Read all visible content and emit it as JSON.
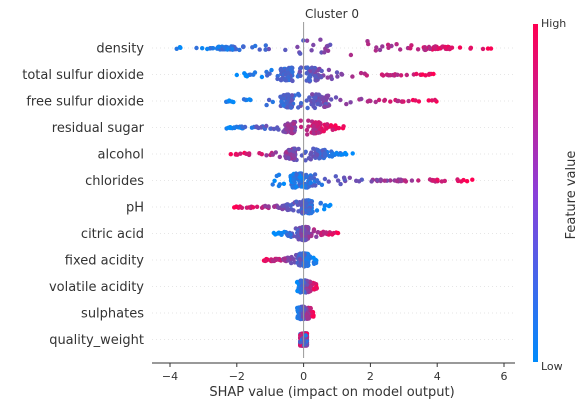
{
  "chart_data": {
    "type": "scatter",
    "subtype": "shap-beeswarm",
    "title": "Cluster 0",
    "xlabel": "SHAP value (impact on model output)",
    "xlim": [
      -4.6,
      6.3
    ],
    "xticks": [
      -4,
      -2,
      0,
      2,
      4,
      6
    ],
    "xtick_labels": [
      "−4",
      "−2",
      "0",
      "2",
      "4",
      "6"
    ],
    "colorbar": {
      "title": "Feature value",
      "high_label": "High",
      "low_label": "Low",
      "low_color": "#008bfb",
      "high_color": "#ff0052"
    },
    "grid": false,
    "features": [
      {
        "name": "density",
        "min": -4.0,
        "max": 5.7,
        "peak": -2.3,
        "peak2": 4.0,
        "width": 18,
        "hi_side": "right"
      },
      {
        "name": "total sulfur dioxide",
        "min": -2.1,
        "max": 4.0,
        "peak": -0.5,
        "peak2": 0.3,
        "width": 14,
        "hi_side": "right"
      },
      {
        "name": "free sulfur dioxide",
        "min": -2.4,
        "max": 4.2,
        "peak": -0.5,
        "peak2": 0.5,
        "width": 14,
        "hi_side": "right"
      },
      {
        "name": "residual sugar",
        "min": -2.4,
        "max": 1.2,
        "peak": -0.4,
        "peak2": 0.4,
        "width": 14,
        "hi_side": "right"
      },
      {
        "name": "alcohol",
        "min": -2.2,
        "max": 1.5,
        "peak": -0.4,
        "peak2": 0.5,
        "width": 13,
        "hi_side": "left"
      },
      {
        "name": "chlorides",
        "min": -1.1,
        "max": 5.2,
        "peak": -0.2,
        "peak2": 0.1,
        "width": 14,
        "hi_side": "right"
      },
      {
        "name": "pH",
        "min": -2.1,
        "max": 0.8,
        "peak": 0.1,
        "peak2": 0.1,
        "width": 13,
        "hi_side": "left"
      },
      {
        "name": "citric acid",
        "min": -0.9,
        "max": 1.1,
        "peak": 0.0,
        "peak2": 0.0,
        "width": 13,
        "hi_side": "right"
      },
      {
        "name": "fixed acidity",
        "min": -1.2,
        "max": 0.4,
        "peak": 0.0,
        "peak2": 0.0,
        "width": 13,
        "hi_side": "left"
      },
      {
        "name": "volatile acidity",
        "min": -0.2,
        "max": 0.4,
        "peak": 0.0,
        "peak2": 0.0,
        "width": 12,
        "hi_side": "right"
      },
      {
        "name": "sulphates",
        "min": -0.2,
        "max": 0.3,
        "peak": 0.0,
        "peak2": 0.0,
        "width": 12,
        "hi_side": "right"
      },
      {
        "name": "quality_weight",
        "min": -0.1,
        "max": 0.1,
        "peak": 0.0,
        "peak2": 0.0,
        "width": 12,
        "hi_side": "mixed"
      }
    ]
  }
}
